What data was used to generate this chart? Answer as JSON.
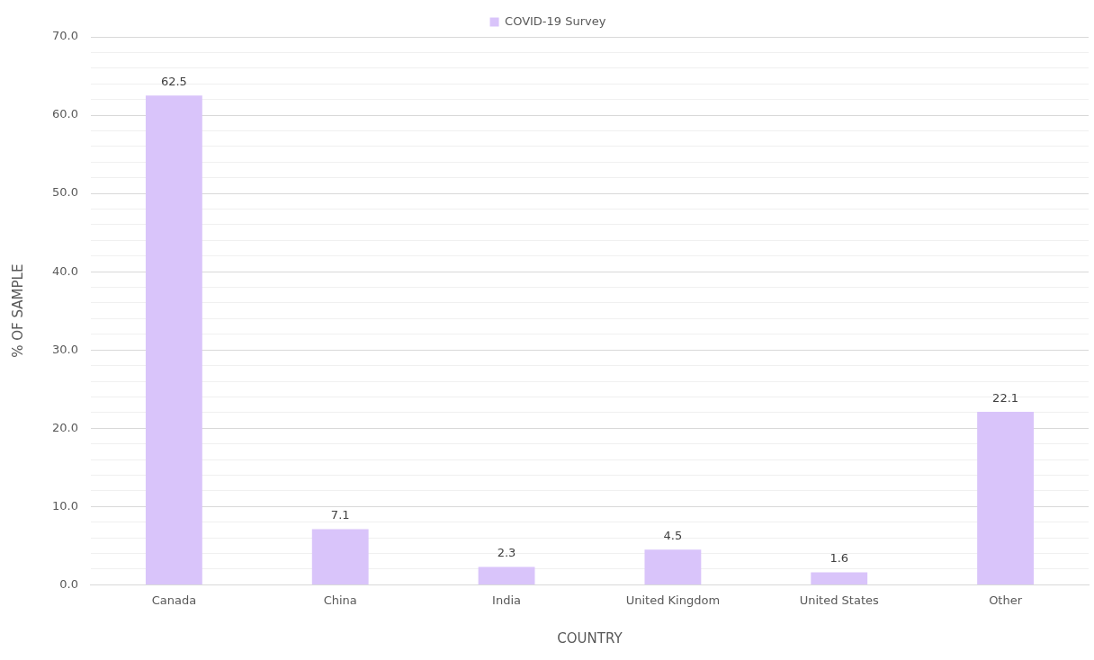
{
  "chart_data": {
    "type": "bar",
    "xlabel": "COUNTRY",
    "ylabel": "% OF SAMPLE",
    "categories": [
      "Canada",
      "China",
      "India",
      "United Kingdom",
      "United States",
      "Other"
    ],
    "series": [
      {
        "name": "COVID-19 Survey",
        "color": "#d9c4fa",
        "values": [
          62.5,
          7.1,
          2.3,
          4.5,
          1.6,
          22.1
        ]
      }
    ],
    "ylim": [
      0,
      70
    ],
    "yticks": [
      {
        "value": 0,
        "label": "0.0"
      },
      {
        "value": 2,
        "label": null
      },
      {
        "value": 4,
        "label": null
      },
      {
        "value": 6,
        "label": null
      },
      {
        "value": 8,
        "label": null
      },
      {
        "value": 10,
        "label": "10.0"
      },
      {
        "value": 12,
        "label": null
      },
      {
        "value": 14,
        "label": null
      },
      {
        "value": 16,
        "label": null
      },
      {
        "value": 18,
        "label": null
      },
      {
        "value": 20,
        "label": "20.0"
      },
      {
        "value": 22,
        "label": null
      },
      {
        "value": 24,
        "label": null
      },
      {
        "value": 26,
        "label": null
      },
      {
        "value": 28,
        "label": null
      },
      {
        "value": 30,
        "label": "30.0"
      },
      {
        "value": 32,
        "label": null
      },
      {
        "value": 34,
        "label": null
      },
      {
        "value": 36,
        "label": null
      },
      {
        "value": 38,
        "label": null
      },
      {
        "value": 40,
        "label": "40.0"
      },
      {
        "value": 42,
        "label": null
      },
      {
        "value": 44,
        "label": null
      },
      {
        "value": 46,
        "label": null
      },
      {
        "value": 48,
        "label": null
      },
      {
        "value": 50,
        "label": "50.0"
      },
      {
        "value": 52,
        "label": null
      },
      {
        "value": 54,
        "label": null
      },
      {
        "value": 56,
        "label": null
      },
      {
        "value": 58,
        "label": null
      },
      {
        "value": 60,
        "label": "60.0"
      },
      {
        "value": 62,
        "label": null
      },
      {
        "value": 64,
        "label": null
      },
      {
        "value": 66,
        "label": null
      },
      {
        "value": 68,
        "label": null
      },
      {
        "value": 70,
        "label": "70.0"
      }
    ],
    "grid": "y",
    "legend": "top",
    "data_labels": true
  }
}
